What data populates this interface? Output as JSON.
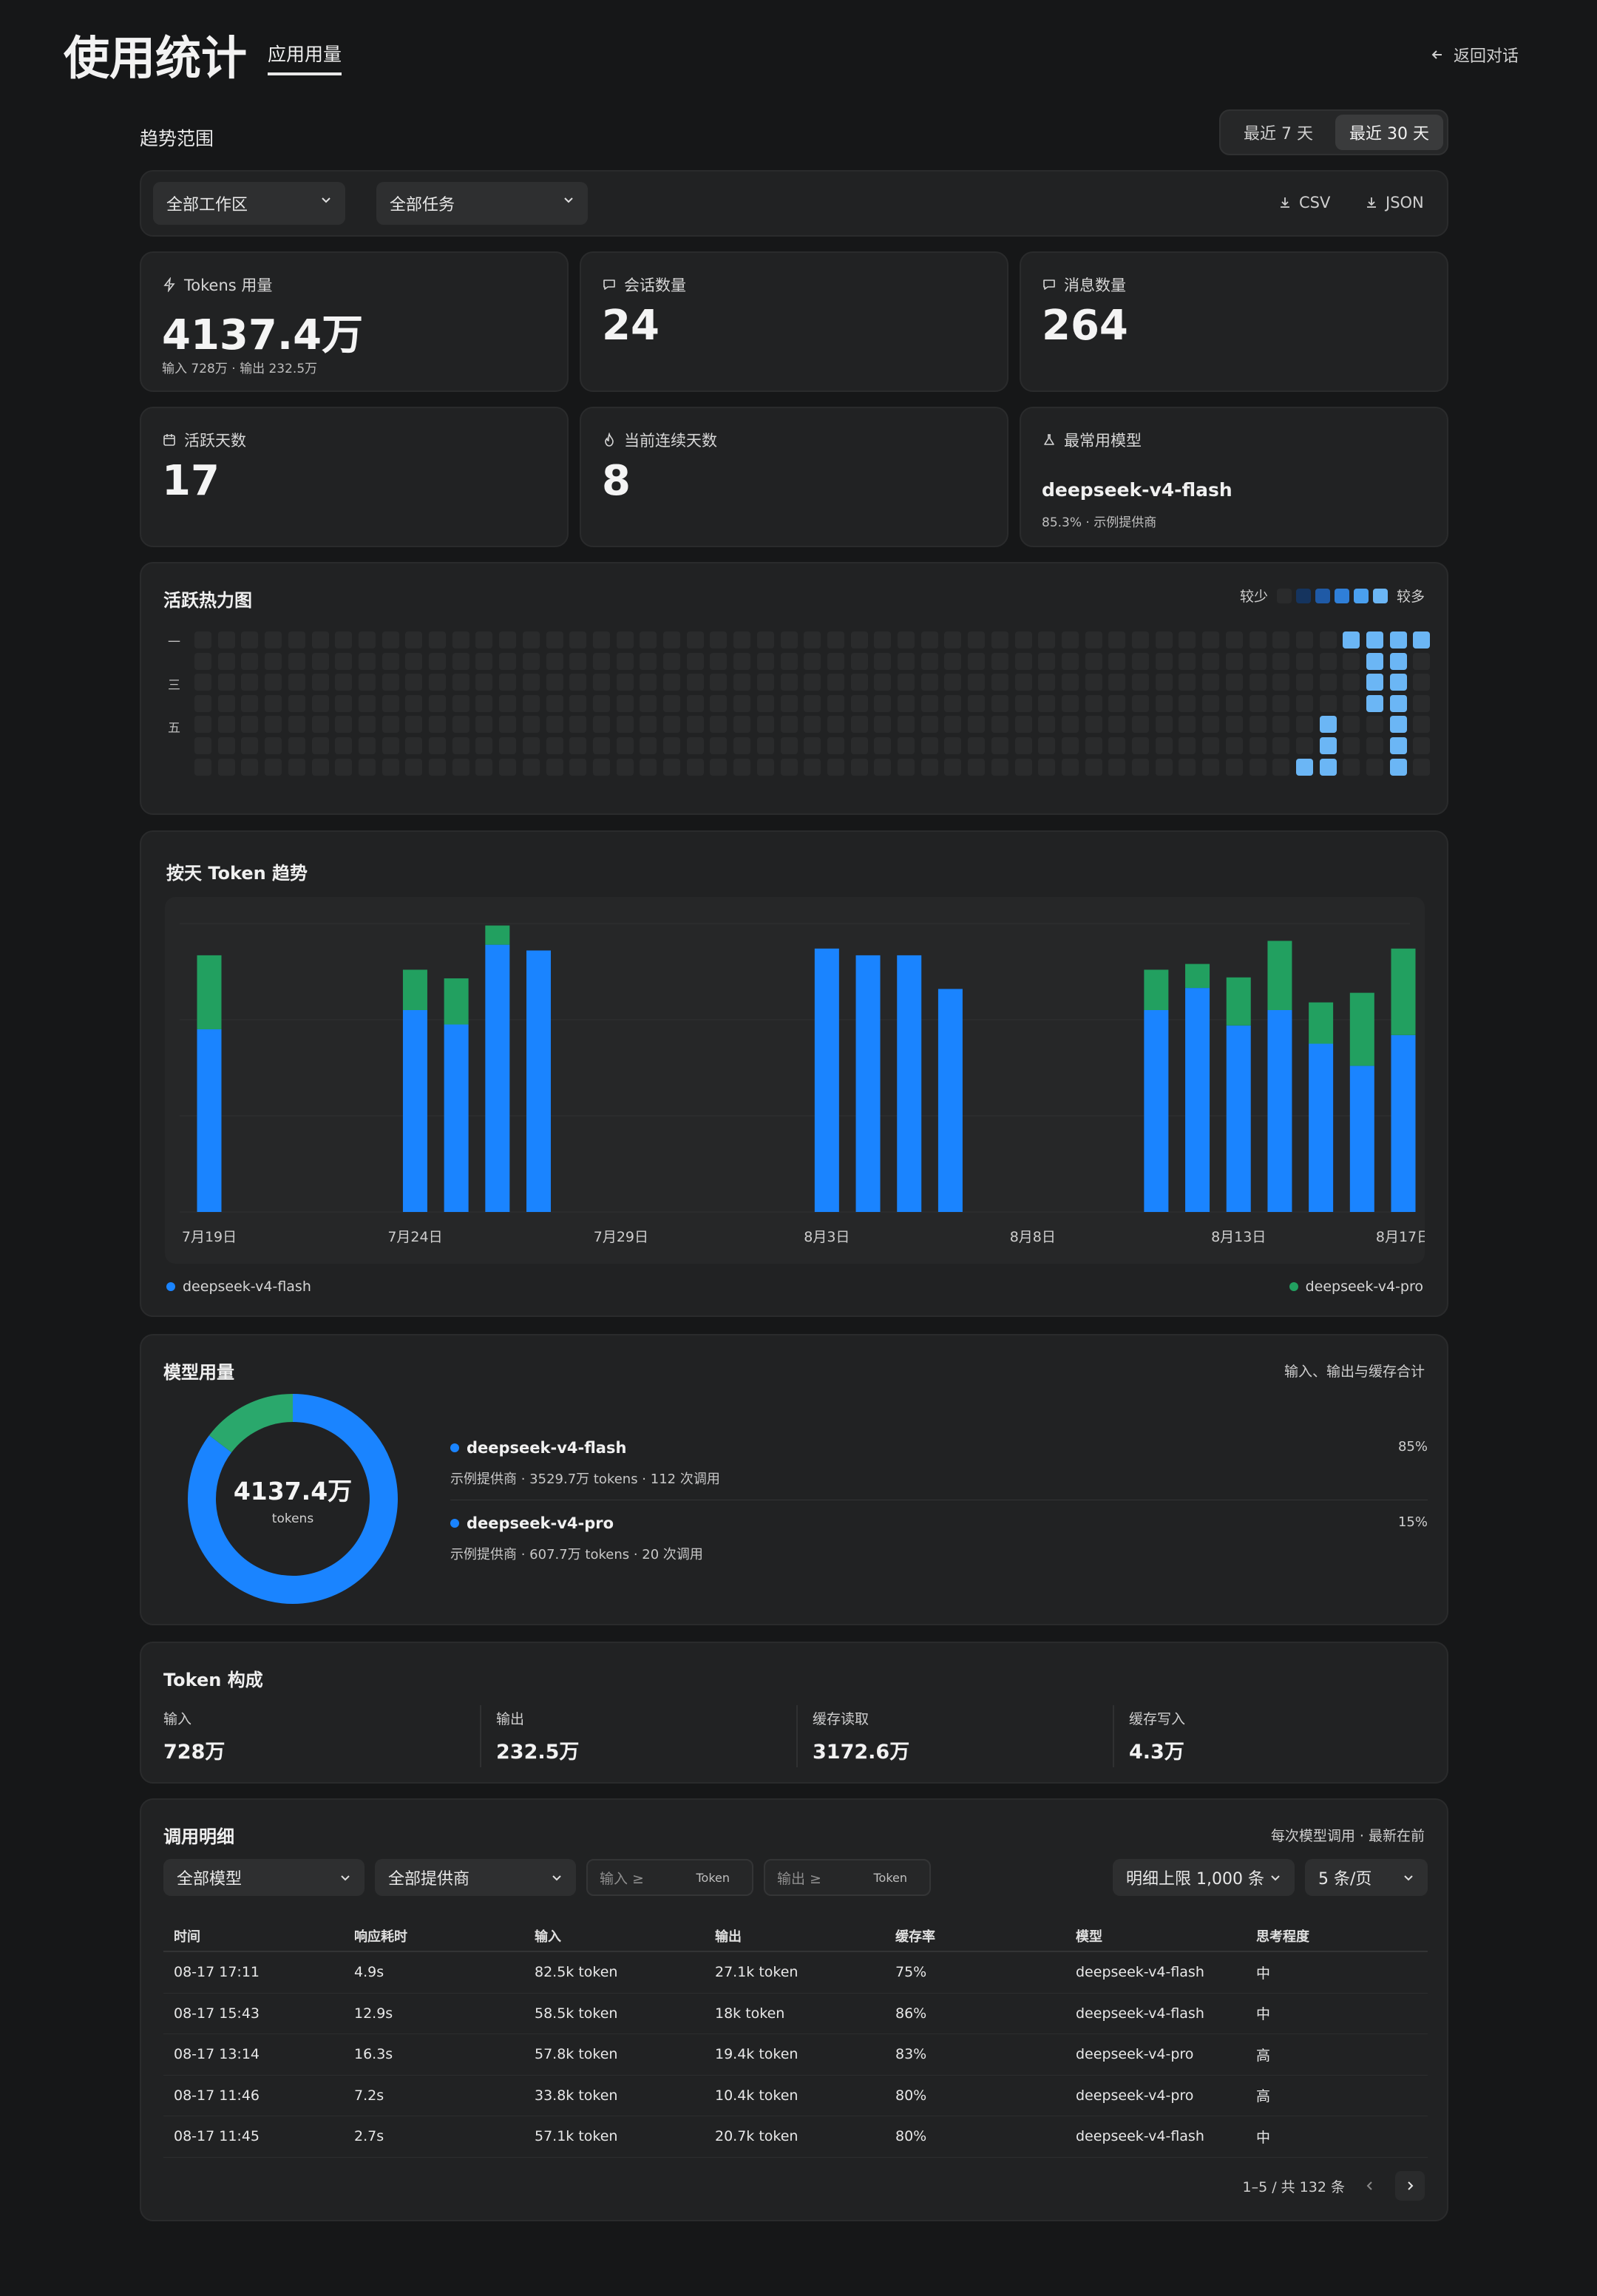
{
  "header": {
    "title": "使用统计",
    "tab": "应用用量",
    "back_label": "返回对话"
  },
  "range": {
    "label": "趋势范围",
    "options": [
      "最近 7 天",
      "最近 30 天"
    ],
    "selected": "最近 30 天"
  },
  "filters": {
    "workspace": "全部工作区",
    "task": "全部任务",
    "csv_label": "CSV",
    "json_label": "JSON"
  },
  "stats": {
    "tokens": {
      "label": "Tokens 用量",
      "value": "4137.4万",
      "sub": "输入 728万 · 输出 232.5万"
    },
    "sessions": {
      "label": "会话数量",
      "value": "24"
    },
    "messages": {
      "label": "消息数量",
      "value": "264"
    },
    "active_days": {
      "label": "活跃天数",
      "value": "17"
    },
    "streak": {
      "label": "当前连续天数",
      "value": "8"
    },
    "top_model": {
      "label": "最常用模型",
      "value": "deepseek-v4-flash",
      "sub": "85.3% · 示例提供商"
    }
  },
  "heatmap": {
    "title": "活跃热力图",
    "legend_less": "较少",
    "legend_more": "较多",
    "day_labels": [
      "一",
      "三",
      "五"
    ],
    "colors": [
      "#2a2b2c",
      "#15345e",
      "#1f5aa6",
      "#2f7fd8",
      "#4aa0ef",
      "#6bb6f5"
    ],
    "weeks": 53,
    "active_cells": [
      {
        "week": 49,
        "day": 0,
        "level": 5
      },
      {
        "week": 50,
        "day": 0,
        "level": 5
      },
      {
        "week": 51,
        "day": 0,
        "level": 5
      },
      {
        "week": 52,
        "day": 0,
        "level": 5
      },
      {
        "week": 50,
        "day": 1,
        "level": 5
      },
      {
        "week": 51,
        "day": 1,
        "level": 5
      },
      {
        "week": 50,
        "day": 2,
        "level": 5
      },
      {
        "week": 51,
        "day": 2,
        "level": 5
      },
      {
        "week": 50,
        "day": 3,
        "level": 5
      },
      {
        "week": 51,
        "day": 3,
        "level": 5
      },
      {
        "week": 48,
        "day": 4,
        "level": 5
      },
      {
        "week": 51,
        "day": 4,
        "level": 5
      },
      {
        "week": 48,
        "day": 5,
        "level": 5
      },
      {
        "week": 51,
        "day": 5,
        "level": 5
      },
      {
        "week": 47,
        "day": 6,
        "level": 5
      },
      {
        "week": 48,
        "day": 6,
        "level": 5
      },
      {
        "week": 51,
        "day": 6,
        "level": 5
      }
    ]
  },
  "trend": {
    "title": "按天 Token 趋势",
    "legend": [
      {
        "name": "deepseek-v4-flash",
        "color": "#1a84ff"
      },
      {
        "name": "deepseek-v4-pro",
        "color": "#22a060"
      }
    ]
  },
  "chart_data": {
    "type": "bar",
    "stacked": true,
    "grid": true,
    "categories": [
      "7月19日",
      "7月20日",
      "7月21日",
      "7月22日",
      "7月23日",
      "7月24日",
      "7月25日",
      "7月26日",
      "7月27日",
      "7月28日",
      "7月29日",
      "7月30日",
      "7月31日",
      "8月1日",
      "8月2日",
      "8月3日",
      "8月4日",
      "8月5日",
      "8月6日",
      "8月7日",
      "8月8日",
      "8月9日",
      "8月10日",
      "8月11日",
      "8月12日",
      "8月13日",
      "8月14日",
      "8月15日",
      "8月16日",
      "8月17日"
    ],
    "tick_labels": [
      "7月19日",
      "7月24日",
      "7月29日",
      "8月3日",
      "8月8日",
      "8月13日",
      "8月17日"
    ],
    "ylim": [
      0,
      3
    ],
    "series": [
      {
        "name": "deepseek-v4-flash",
        "color": "#1a84ff",
        "values": [
          1.9,
          0,
          0,
          0,
          0,
          2.1,
          1.95,
          2.78,
          2.72,
          0,
          0,
          0,
          0,
          0,
          0,
          2.74,
          2.67,
          2.67,
          2.32,
          0,
          0,
          0,
          0,
          2.1,
          2.33,
          1.94,
          2.1,
          1.75,
          1.52,
          1.84
        ]
      },
      {
        "name": "deepseek-v4-pro",
        "color": "#22a060",
        "values": [
          0.77,
          0,
          0,
          0,
          0,
          0.42,
          0.48,
          0.2,
          0,
          0,
          0,
          0,
          0,
          0,
          0,
          0,
          0,
          0,
          0,
          0,
          0,
          0,
          0,
          0.42,
          0.25,
          0.5,
          0.72,
          0.43,
          0.76,
          0.9
        ]
      }
    ]
  },
  "model_usage": {
    "title": "模型用量",
    "note": "输入、输出与缓存合计",
    "total": "4137.4万",
    "unit": "tokens",
    "models": [
      {
        "name": "deepseek-v4-flash",
        "desc": "示例提供商 · 3529.7万 tokens · 112 次调用",
        "pct": "85%",
        "share": 0.853,
        "color": "#1a84ff"
      },
      {
        "name": "deepseek-v4-pro",
        "desc": "示例提供商 · 607.7万 tokens · 20 次调用",
        "pct": "15%",
        "share": 0.147,
        "color": "#2aa86c"
      }
    ]
  },
  "token_comp": {
    "title": "Token 构成",
    "items": [
      {
        "label": "输入",
        "value": "728万"
      },
      {
        "label": "输出",
        "value": "232.5万"
      },
      {
        "label": "缓存读取",
        "value": "3172.6万"
      },
      {
        "label": "缓存写入",
        "value": "4.3万"
      }
    ]
  },
  "calls": {
    "title": "调用明细",
    "note": "每次模型调用 · 最新在前",
    "model_filter": "全部模型",
    "provider_filter": "全部提供商",
    "input_placeholder": "输入 ≥",
    "output_placeholder": "输出 ≥",
    "token_unit": "Token",
    "limit": "明细上限 1,000 条",
    "page_size": "5 条/页",
    "columns": [
      "时间",
      "响应耗时",
      "输入",
      "输出",
      "缓存率",
      "模型",
      "思考程度"
    ],
    "rows": [
      [
        "08-17 17:11",
        "4.9s",
        "82.5k token",
        "27.1k token",
        "75%",
        "deepseek-v4-flash",
        "中"
      ],
      [
        "08-17 15:43",
        "12.9s",
        "58.5k token",
        "18k token",
        "86%",
        "deepseek-v4-flash",
        "中"
      ],
      [
        "08-17 13:14",
        "16.3s",
        "57.8k token",
        "19.4k token",
        "83%",
        "deepseek-v4-pro",
        "高"
      ],
      [
        "08-17 11:46",
        "7.2s",
        "33.8k token",
        "10.4k token",
        "80%",
        "deepseek-v4-pro",
        "高"
      ],
      [
        "08-17 11:45",
        "2.7s",
        "57.1k token",
        "20.7k token",
        "80%",
        "deepseek-v4-flash",
        "中"
      ]
    ],
    "pagination": "1–5 / 共 132 条"
  }
}
